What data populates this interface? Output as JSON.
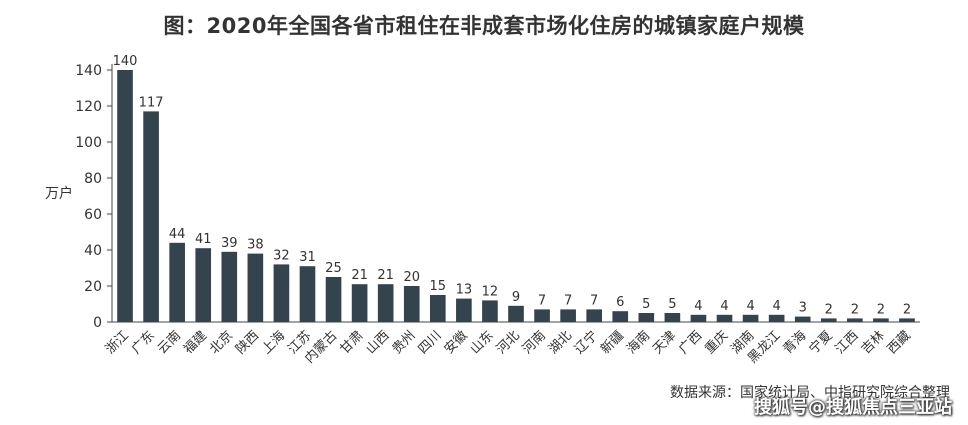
{
  "chart_data": {
    "type": "bar",
    "title": "图：2020年全国各省市租住在非成套市场化住房的城镇家庭户规模",
    "ylabel": "万户",
    "xlabel": "",
    "ylim": [
      0,
      140
    ],
    "yticks": [
      0,
      20,
      40,
      60,
      80,
      100,
      120,
      140
    ],
    "grid": false,
    "bar_color": "#34444f",
    "categories": [
      "浙江",
      "广东",
      "云南",
      "福建",
      "北京",
      "陕西",
      "上海",
      "江苏",
      "内蒙古",
      "甘肃",
      "山西",
      "贵州",
      "四川",
      "安徽",
      "山东",
      "河北",
      "河南",
      "湖北",
      "辽宁",
      "新疆",
      "海南",
      "天津",
      "广西",
      "重庆",
      "湖南",
      "黑龙江",
      "青海",
      "宁夏",
      "江西",
      "吉林",
      "西藏"
    ],
    "values": [
      140,
      117,
      44,
      41,
      39,
      38,
      32,
      31,
      25,
      21,
      21,
      20,
      15,
      13,
      12,
      9,
      7,
      7,
      7,
      6,
      5,
      5,
      4,
      4,
      4,
      4,
      3,
      2,
      2,
      2,
      2
    ]
  },
  "footer": {
    "source": "数据来源：国家统计局、中指研究院综合整理",
    "watermark": "搜狐号@搜狐焦点三亚站"
  }
}
